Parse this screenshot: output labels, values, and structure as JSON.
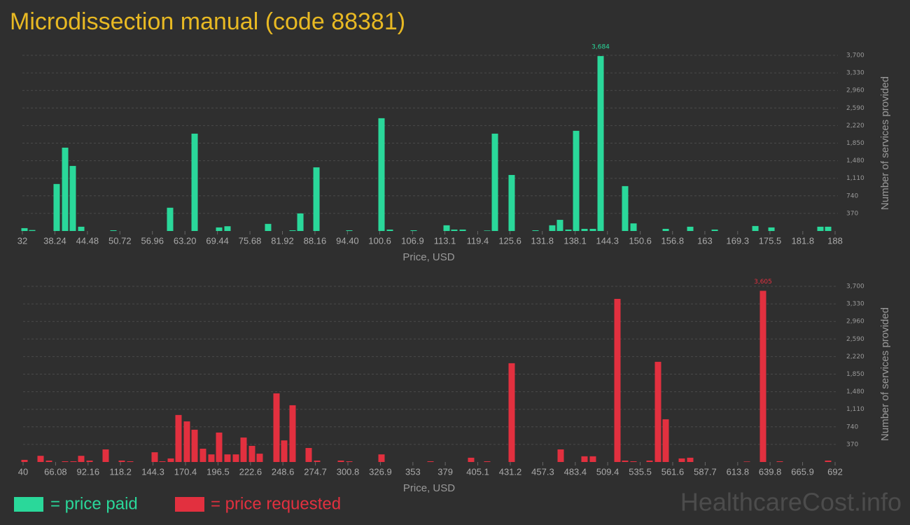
{
  "title": "Microdissection manual (code 88381)",
  "watermark": "HealthcareCost.info",
  "chart_data": [
    {
      "type": "bar",
      "color": "#2ad89a",
      "legend_label": "= price paid",
      "x_label": "Price, USD",
      "y_label": "Number of services provided",
      "grid": true,
      "xlim": [
        32,
        188
      ],
      "xticks": [
        32,
        38.24,
        44.48,
        50.72,
        56.96,
        {
          "value": 63.2,
          "label": "63.20"
        },
        69.44,
        75.68,
        81.92,
        88.16,
        {
          "value": 94.4,
          "label": "94.40"
        },
        100.6,
        106.9,
        113.1,
        119.4,
        125.6,
        131.8,
        138.1,
        144.3,
        150.6,
        156.8,
        163,
        169.3,
        175.5,
        181.8,
        188
      ],
      "ylim": [
        0,
        3700
      ],
      "yticks": [
        370,
        740,
        {
          "value": 1110,
          "label": "1,110"
        },
        {
          "value": 1480,
          "label": "1,480"
        },
        {
          "value": 1850,
          "label": "1,850"
        },
        {
          "value": 2220,
          "label": "2,220"
        },
        {
          "value": 2590,
          "label": "2,590"
        },
        {
          "value": 2960,
          "label": "2,960"
        },
        {
          "value": 3330,
          "label": "3,330"
        },
        {
          "value": 3700,
          "label": "3,700"
        }
      ],
      "x": [
        32.4,
        33.88,
        38.58,
        40.2,
        41.67,
        43.29,
        49.47,
        60.35,
        65.06,
        69.76,
        71.37,
        79.16,
        83.87,
        85.35,
        88.44,
        94.75,
        100.93,
        102.54,
        107.11,
        113.43,
        114.9,
        116.52,
        121.22,
        122.7,
        125.92,
        130.49,
        133.71,
        135.19,
        136.81,
        138.29,
        139.9,
        141.51,
        142.99,
        147.69,
        149.31,
        155.49,
        160.19,
        164.9,
        172.69,
        175.78,
        185.18,
        186.66
      ],
      "values": [
        60,
        20,
        990,
        1755,
        1370,
        90,
        15,
        490,
        2050,
        75,
        100,
        150,
        15,
        370,
        1340,
        15,
        2375,
        30,
        15,
        120,
        30,
        30,
        10,
        2050,
        1180,
        15,
        120,
        235,
        30,
        2110,
        45,
        45,
        3684,
        945,
        160,
        45,
        90,
        30,
        105,
        75,
        90,
        90
      ],
      "value_labels": [
        null,
        null,
        null,
        null,
        null,
        null,
        null,
        null,
        null,
        null,
        null,
        null,
        null,
        null,
        null,
        null,
        null,
        null,
        null,
        null,
        null,
        null,
        null,
        null,
        null,
        null,
        null,
        null,
        null,
        null,
        null,
        null,
        "3,684",
        null,
        null,
        null,
        null,
        null,
        null,
        null,
        null,
        null
      ]
    },
    {
      "type": "bar",
      "color": "#e2303f",
      "legend_label": "= price requested",
      "x_label": "Price, USD",
      "y_label": "Number of services provided",
      "grid": true,
      "xlim": [
        40,
        692
      ],
      "xticks": [
        40,
        66.08,
        92.16,
        118.2,
        144.3,
        170.4,
        196.5,
        222.6,
        248.6,
        274.7,
        300.8,
        326.9,
        353,
        379,
        405.1,
        431.2,
        457.3,
        483.4,
        509.4,
        535.5,
        561.6,
        587.7,
        613.8,
        639.8,
        665.9,
        692
      ],
      "ylim": [
        0,
        3700
      ],
      "yticks": [
        370,
        740,
        {
          "value": 1110,
          "label": "1,110"
        },
        {
          "value": 1480,
          "label": "1,480"
        },
        {
          "value": 1850,
          "label": "1,850"
        },
        {
          "value": 2220,
          "label": "2,220"
        },
        {
          "value": 2590,
          "label": "2,590"
        },
        {
          "value": 2960,
          "label": "2,960"
        },
        {
          "value": 3330,
          "label": "3,330"
        },
        {
          "value": 3700,
          "label": "3,700"
        }
      ],
      "x": [
        41.12,
        54.05,
        60.8,
        73.72,
        80.47,
        86.65,
        93.4,
        106.32,
        119.25,
        125.99,
        145.67,
        151.85,
        158.6,
        164.78,
        171.52,
        177.71,
        184.45,
        191.2,
        197.38,
        204.12,
        210.87,
        217.05,
        223.8,
        229.98,
        243.47,
        249.65,
        256.4,
        269.32,
        276.07,
        295.18,
        301.92,
        327.78,
        367.12,
        399.72,
        412.65,
        432.32,
        471.67,
        490.78,
        497.52,
        517.2,
        523.38,
        530.12,
        543.05,
        549.8,
        555.98,
        568.91,
        575.65,
        621.18,
        634.11,
        647.6,
        686.38
      ],
      "values": [
        45,
        130,
        30,
        15,
        15,
        130,
        30,
        265,
        30,
        15,
        205,
        15,
        75,
        990,
        855,
        680,
        280,
        160,
        620,
        160,
        160,
        515,
        340,
        175,
        1445,
        455,
        1195,
        295,
        30,
        30,
        15,
        160,
        15,
        90,
        15,
        2080,
        265,
        120,
        120,
        3435,
        30,
        15,
        30,
        2110,
        900,
        75,
        90,
        10,
        3605,
        15,
        30
      ],
      "value_labels": [
        null,
        null,
        null,
        null,
        null,
        null,
        null,
        null,
        null,
        null,
        null,
        null,
        null,
        null,
        null,
        null,
        null,
        null,
        null,
        null,
        null,
        null,
        null,
        null,
        null,
        null,
        null,
        null,
        null,
        null,
        null,
        null,
        null,
        null,
        null,
        null,
        null,
        null,
        null,
        null,
        null,
        null,
        null,
        null,
        null,
        null,
        null,
        null,
        "3,605",
        null,
        null
      ]
    }
  ]
}
